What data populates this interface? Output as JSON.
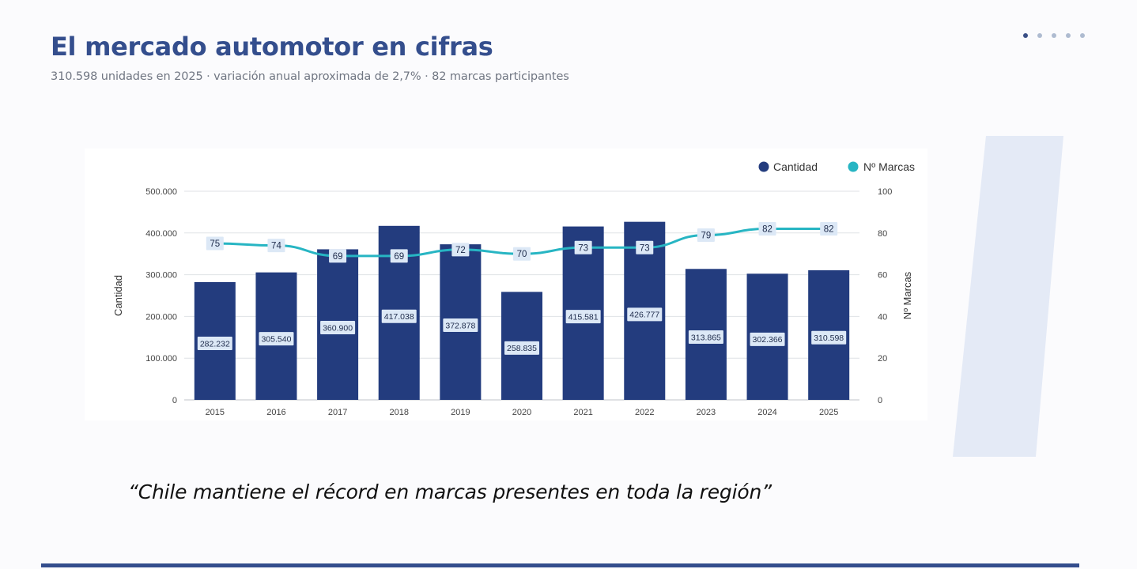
{
  "slide": {
    "title": "El mercado automotor en cifras",
    "subtitle": "310.598 unidades en 2025 · variación anual aproximada de 2,7% · 82 marcas participantes",
    "quote": "“Chile mantiene el récord en marcas presentes en toda la región”",
    "pager_count": 5,
    "pager_active": 0
  },
  "colors": {
    "title": "#344e8d",
    "bar": "#233c7e",
    "line": "#27b5c3",
    "label_bg": "#dce8f6",
    "accent_line": "#344e8d"
  },
  "chart_data": {
    "type": "bar",
    "categories": [
      "2015",
      "2016",
      "2017",
      "2018",
      "2019",
      "2020",
      "2021",
      "2022",
      "2023",
      "2024",
      "2025"
    ],
    "series": [
      {
        "name": "Cantidad",
        "type": "bar",
        "axis": "left",
        "values": [
          282232,
          305540,
          360900,
          417038,
          372878,
          258835,
          415581,
          426777,
          313865,
          302366,
          310598
        ],
        "labels": [
          "282.232",
          "305.540",
          "360.900",
          "417.038",
          "372.878",
          "258.835",
          "415.581",
          "426.777",
          "313.865",
          "302.366",
          "310.598"
        ]
      },
      {
        "name": "Nº Marcas",
        "type": "line",
        "axis": "right",
        "values": [
          75,
          74,
          69,
          69,
          72,
          70,
          73,
          73,
          79,
          82,
          82
        ],
        "labels": [
          "75",
          "74",
          "69",
          "69",
          "72",
          "70",
          "73",
          "73",
          "79",
          "82",
          "82"
        ]
      }
    ],
    "ylabel": "Cantidad",
    "y2label": "Nº Marcas",
    "ylim": [
      0,
      500000
    ],
    "y2lim": [
      0,
      100
    ],
    "yticks": [
      "0",
      "100.000",
      "200.000",
      "300.000",
      "400.000",
      "500.000"
    ],
    "y2ticks": [
      "0",
      "20",
      "40",
      "60",
      "80",
      "100"
    ],
    "grid": true,
    "legend": "top-right"
  }
}
